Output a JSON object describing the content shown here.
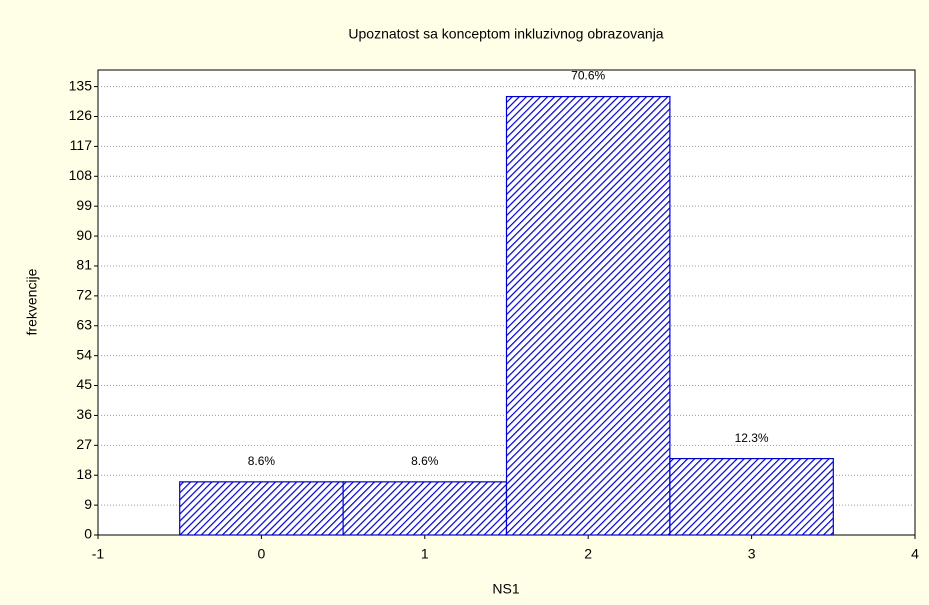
{
  "chart_data": {
    "type": "histogram",
    "title": "Upoznatost sa konceptom inkluzivnog obrazovanja",
    "xlabel": "NS1",
    "ylabel": "frekvencije",
    "bins": [
      -0.5,
      0.5,
      1.5,
      2.5,
      3.5
    ],
    "values": [
      16,
      16,
      132,
      23
    ],
    "data_labels": [
      "8.6%",
      "8.6%",
      "70.6%",
      "12.3%"
    ],
    "color": "#0000cc",
    "xlim": [
      -1,
      4
    ],
    "xticks": [
      -1,
      0,
      1,
      2,
      3,
      4
    ],
    "ylim": [
      0,
      140
    ],
    "yticks": [
      0,
      9,
      18,
      27,
      36,
      45,
      54,
      63,
      72,
      81,
      90,
      99,
      108,
      117,
      126,
      135
    ],
    "grid": true
  }
}
